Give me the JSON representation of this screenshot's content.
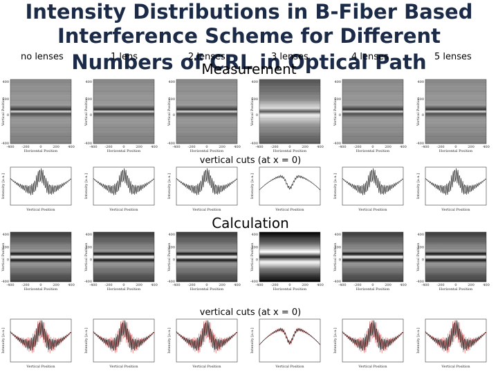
{
  "title_lines": [
    "Intensity Distributions in B-Fiber Based",
    "Interference Scheme for Different",
    "Numbers of CRL in Optical Path"
  ],
  "lens_labels": [
    "no lenses",
    "1 lens",
    "2 lenses",
    "3 lenses",
    "4 lenses",
    "5 lenses"
  ],
  "sections": {
    "measurement": "Measurement",
    "calculation": "Calculation"
  },
  "cut_labels": [
    "vertical cuts (at x = 0)",
    "vertical cuts (at x = 0)"
  ],
  "panel_axes": {
    "y_label": "Vertical Position",
    "x_label": "Horizontal Position",
    "y_ticks": [
      "400",
      "200",
      "0",
      "-400"
    ],
    "x_ticks": [
      "-400",
      "-200",
      "0",
      "200",
      "400"
    ]
  },
  "cut_axes": {
    "x_label": "Vertical Position",
    "y_label": "Intensity [a.u.]"
  }
}
